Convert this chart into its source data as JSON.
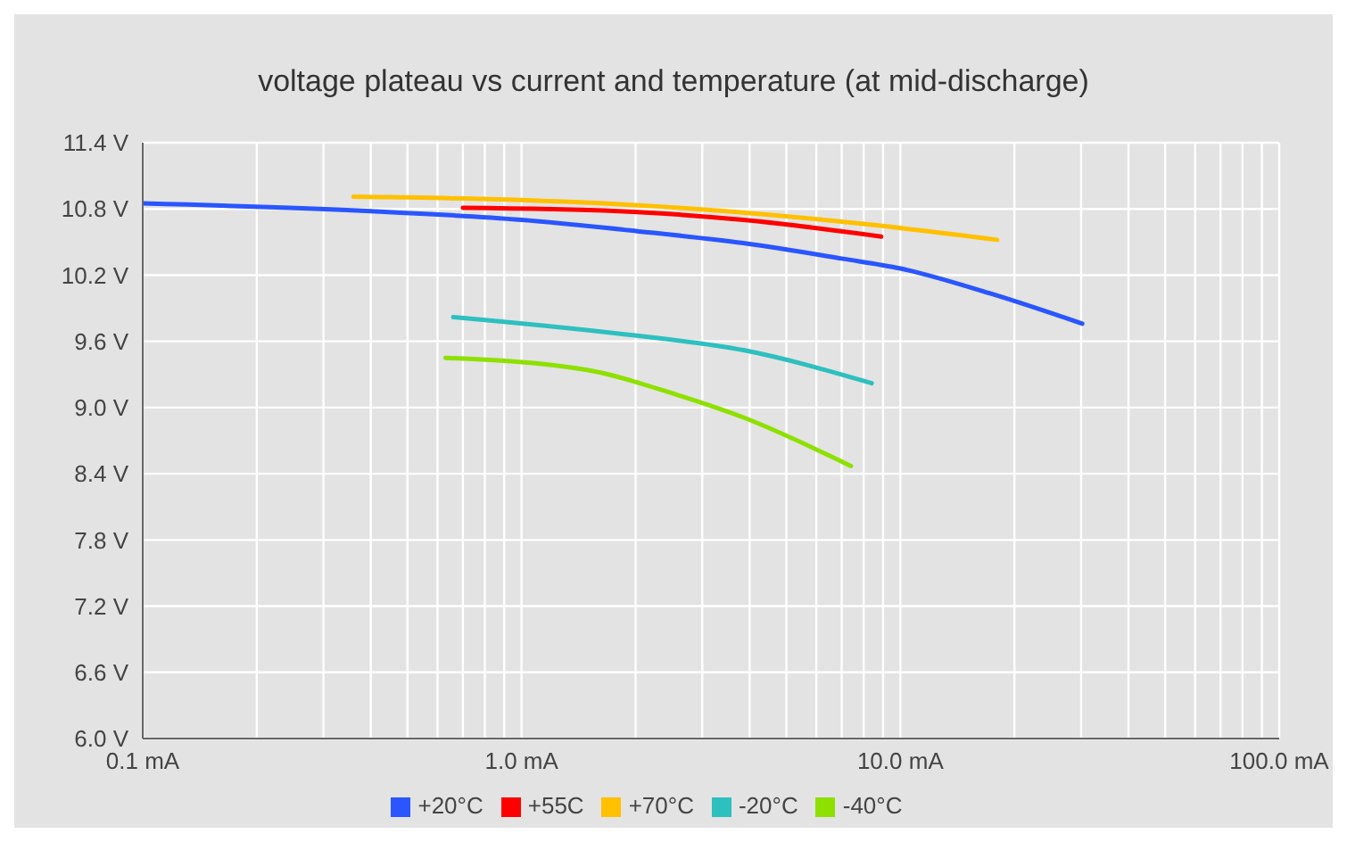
{
  "chart_data": {
    "type": "line",
    "title": "voltage plateau vs current and temperature (at mid-discharge)",
    "log": "x",
    "grid": true,
    "legend": "bottom",
    "marker": "none",
    "line_style": "solid",
    "xlim": [
      0.1,
      100
    ],
    "xticks": [
      {
        "value": 0.1,
        "label": "0.1 mA"
      },
      {
        "value": 0.2,
        "label": null
      },
      {
        "value": 0.3,
        "label": null
      },
      {
        "value": 0.4,
        "label": null
      },
      {
        "value": 0.5,
        "label": null
      },
      {
        "value": 0.6,
        "label": null
      },
      {
        "value": 0.7,
        "label": null
      },
      {
        "value": 0.8,
        "label": null
      },
      {
        "value": 0.9,
        "label": null
      },
      {
        "value": 1,
        "label": "1.0 mA"
      },
      {
        "value": 2,
        "label": null
      },
      {
        "value": 3,
        "label": null
      },
      {
        "value": 4,
        "label": null
      },
      {
        "value": 5,
        "label": null
      },
      {
        "value": 6,
        "label": null
      },
      {
        "value": 7,
        "label": null
      },
      {
        "value": 8,
        "label": null
      },
      {
        "value": 9,
        "label": null
      },
      {
        "value": 10,
        "label": "10.0 mA"
      },
      {
        "value": 20,
        "label": null
      },
      {
        "value": 30,
        "label": null
      },
      {
        "value": 40,
        "label": null
      },
      {
        "value": 50,
        "label": null
      },
      {
        "value": 60,
        "label": null
      },
      {
        "value": 70,
        "label": null
      },
      {
        "value": 80,
        "label": null
      },
      {
        "value": 90,
        "label": null
      },
      {
        "value": 100,
        "label": "100.0 mA"
      }
    ],
    "ylim": [
      6.0,
      11.4
    ],
    "yticks": [
      {
        "value": 6.0,
        "label": "6.0 V"
      },
      {
        "value": 6.6,
        "label": "6.6 V"
      },
      {
        "value": 7.2,
        "label": "7.2 V"
      },
      {
        "value": 7.8,
        "label": "7.8 V"
      },
      {
        "value": 8.4,
        "label": "8.4 V"
      },
      {
        "value": 9.0,
        "label": "9.0 V"
      },
      {
        "value": 9.6,
        "label": "9.6 V"
      },
      {
        "value": 10.2,
        "label": "10.2 V"
      },
      {
        "value": 10.8,
        "label": "10.8 V"
      },
      {
        "value": 11.4,
        "label": "11.4 V"
      }
    ],
    "series": [
      {
        "name": "-40°C",
        "color": "#8ee000",
        "x": [
          0.63,
          1.49,
          2.6,
          3.85,
          7.4
        ],
        "values": [
          9.45,
          9.34,
          9.11,
          8.91,
          8.47
        ]
      },
      {
        "name": "-20°C",
        "color": "#2ebfbf",
        "x": [
          0.66,
          1.8,
          3.85,
          8.4
        ],
        "values": [
          9.82,
          9.67,
          9.52,
          9.22
        ]
      },
      {
        "name": "+20°C",
        "color": "#2a55ff",
        "x": [
          0.1,
          0.4,
          1.0,
          2.0,
          3.85,
          7.0,
          10,
          17.4,
          30.2
        ],
        "values": [
          10.85,
          10.78,
          10.7,
          10.6,
          10.49,
          10.35,
          10.26,
          10.03,
          9.76
        ]
      },
      {
        "name": "+55C",
        "color": "#ff0000",
        "x": [
          0.7,
          1.8,
          3.85,
          8.9
        ],
        "values": [
          10.81,
          10.78,
          10.7,
          10.55
        ]
      },
      {
        "name": "+70°C",
        "color": "#ffc000",
        "x": [
          0.36,
          1.0,
          2.6,
          8.2,
          18
        ],
        "values": [
          10.91,
          10.88,
          10.81,
          10.66,
          10.52
        ]
      }
    ]
  }
}
